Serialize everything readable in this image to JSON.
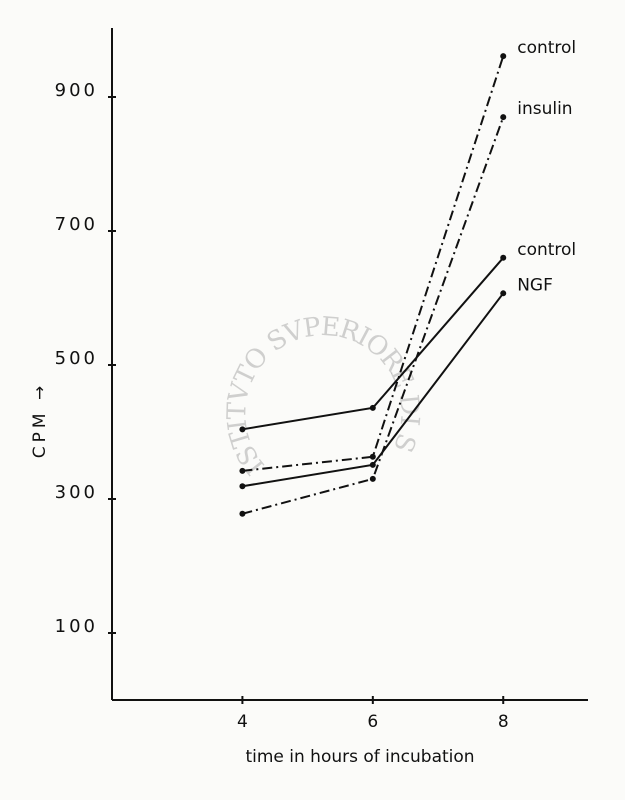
{
  "chart_data": {
    "type": "line",
    "x_label": "time in hours of incubation",
    "y_label": "CPM →",
    "watermark": "ISTITVTO SVPERIORE DI SANITÀ",
    "x": [
      4,
      6,
      8
    ],
    "series": [
      {
        "name": "control",
        "color": "#111111",
        "style": "dashdot",
        "values": [
          342,
          363,
          961
        ]
      },
      {
        "name": "insulin",
        "color": "#111111",
        "style": "dashdot",
        "values": [
          278,
          330,
          870
        ]
      },
      {
        "name": "control",
        "color": "#111111",
        "style": "solid",
        "values": [
          404,
          436,
          660
        ]
      },
      {
        "name": "NGF",
        "color": "#111111",
        "style": "solid",
        "values": [
          319,
          351,
          607
        ]
      }
    ],
    "xlim": [
      2,
      9.3
    ],
    "ylim": [
      0,
      1000
    ],
    "xticks": [
      4,
      6,
      8
    ],
    "yticks": [
      100,
      300,
      500,
      700,
      900
    ],
    "grid": false
  }
}
